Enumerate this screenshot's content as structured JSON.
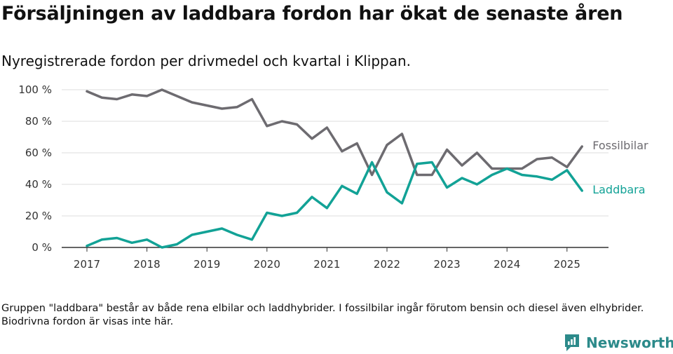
{
  "title": "Försäljningen av laddbara fordon har ökat de senaste åren",
  "subtitle": "Nyregistrerade fordon per drivmedel och kvartal i Klippan.",
  "footnote": "Gruppen \"laddbara\" består av både rena elbilar och laddhybrider. I fossilbilar ingår förutom bensin och diesel även elhybrider. Biodrivna fordon är visas inte här.",
  "brand": {
    "name": "Newsworthy",
    "icon": "newsworthy-logo-icon",
    "color": "#2c8a8a"
  },
  "chart_data": {
    "type": "line",
    "x_start": "2017 Q1",
    "x_ticks": [
      "2017",
      "2018",
      "2019",
      "2020",
      "2021",
      "2022",
      "2023",
      "2024",
      "2025"
    ],
    "y_ticks": [
      "0 %",
      "20 %",
      "40 %",
      "60 %",
      "80 %",
      "100 %"
    ],
    "ylim": [
      0,
      100
    ],
    "grid": true,
    "series": [
      {
        "name": "Fossilbilar",
        "color": "#6d6b70",
        "values": [
          99,
          95,
          94,
          97,
          96,
          100,
          96,
          92,
          90,
          88,
          89,
          94,
          77,
          80,
          78,
          69,
          76,
          61,
          66,
          46,
          65,
          72,
          46,
          46,
          62,
          52,
          60,
          50,
          50,
          50,
          56,
          57,
          51,
          64
        ]
      },
      {
        "name": "Laddbara",
        "color": "#12a296",
        "values": [
          1,
          5,
          6,
          3,
          5,
          0,
          2,
          8,
          10,
          12,
          8,
          5,
          22,
          20,
          22,
          32,
          25,
          39,
          34,
          54,
          35,
          28,
          53,
          54,
          38,
          44,
          40,
          46,
          50,
          46,
          45,
          43,
          49,
          36
        ]
      }
    ]
  }
}
